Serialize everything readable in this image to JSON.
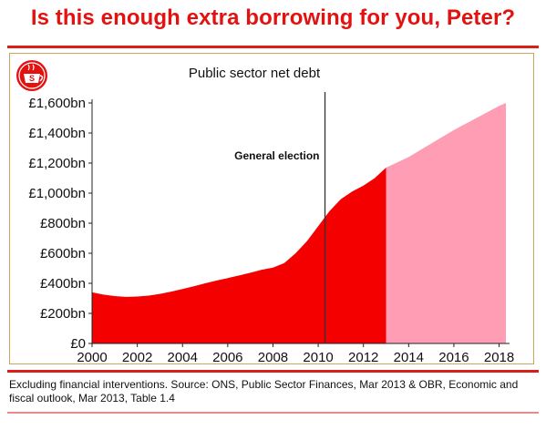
{
  "headline": "Is this enough extra borrowing for you, Peter?",
  "source_note": "Excluding financial interventions. Source: ONS, Public Sector Finances, Mar 2013 & OBR, Economic and fiscal outlook, Mar 2013, Table 1.4",
  "logo": {
    "icon": "tea-cup-logo-icon",
    "letter": "S"
  },
  "colors": {
    "accent": "#e3110f",
    "actual": "#f40000",
    "forecast": "#ff9db4",
    "frame": "#c8a85a"
  },
  "chart_data": {
    "type": "area",
    "title": "Public sector net debt",
    "xlabel": "",
    "ylabel": "",
    "xlim": [
      2000,
      2018.3
    ],
    "ylim": [
      0,
      1600
    ],
    "x_ticks": [
      2000,
      2002,
      2004,
      2006,
      2008,
      2010,
      2012,
      2014,
      2016,
      2018
    ],
    "x_tick_labels": [
      "2000",
      "2002",
      "2004",
      "2006",
      "2008",
      "2010",
      "2012",
      "2014",
      "2016",
      "2018"
    ],
    "y_ticks": [
      0,
      200,
      400,
      600,
      800,
      1000,
      1200,
      1400,
      1600
    ],
    "y_tick_labels": [
      "£0",
      "£200bn",
      "£400bn",
      "£600bn",
      "£800bn",
      "£1,000bn",
      "£1,200bn",
      "£1,400bn",
      "£1,600bn"
    ],
    "grid": false,
    "legend": "none",
    "series": [
      {
        "points": [
          [
            2000.0,
            340
          ],
          [
            2000.5,
            325
          ],
          [
            2001.0,
            315
          ],
          [
            2001.5,
            310
          ],
          [
            2002.0,
            312
          ],
          [
            2002.5,
            318
          ],
          [
            2003.0,
            330
          ],
          [
            2003.5,
            345
          ],
          [
            2004.0,
            362
          ],
          [
            2004.5,
            380
          ],
          [
            2005.0,
            400
          ],
          [
            2005.5,
            418
          ],
          [
            2006.0,
            435
          ],
          [
            2006.5,
            452
          ],
          [
            2007.0,
            470
          ],
          [
            2007.5,
            490
          ],
          [
            2008.0,
            505
          ],
          [
            2008.5,
            535
          ],
          [
            2009.0,
            600
          ],
          [
            2009.5,
            680
          ],
          [
            2010.0,
            780
          ],
          [
            2010.3,
            840
          ],
          [
            2010.5,
            880
          ],
          [
            2011.0,
            960
          ],
          [
            2011.5,
            1010
          ],
          [
            2012.0,
            1050
          ],
          [
            2012.5,
            1100
          ],
          [
            2013.0,
            1170
          ]
        ]
      },
      {
        "points": [
          [
            2013.0,
            1170
          ],
          [
            2014.0,
            1240
          ],
          [
            2015.0,
            1330
          ],
          [
            2016.0,
            1420
          ],
          [
            2017.0,
            1500
          ],
          [
            2017.5,
            1540
          ],
          [
            2018.0,
            1580
          ],
          [
            2018.3,
            1600
          ]
        ]
      }
    ],
    "annotations": [
      {
        "text": "General election",
        "x": 2010.3
      }
    ]
  }
}
